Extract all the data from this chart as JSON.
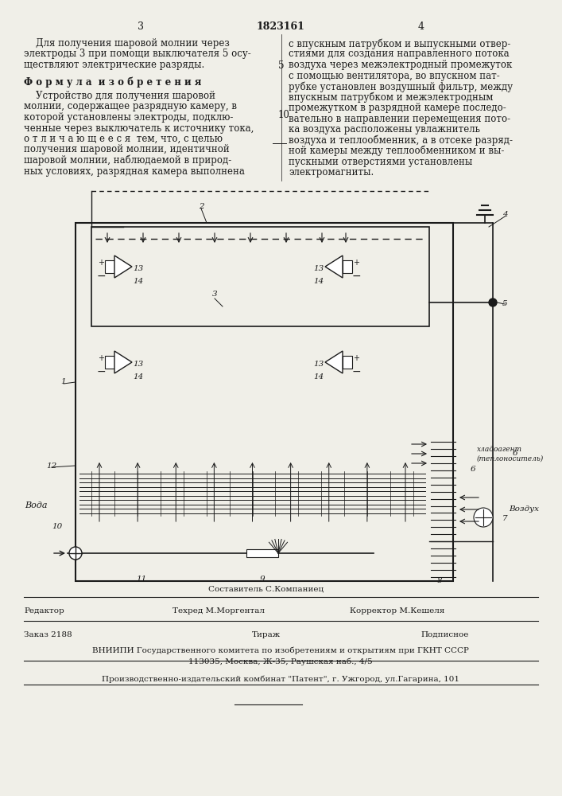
{
  "page_number_left": "3",
  "patent_number": "1823161",
  "page_number_right": "4",
  "text_left_col": [
    "    Для получения шаровой молнии через",
    "электроды 3 при помощи выключателя 5 осу-",
    "ществляют электрические разряды."
  ],
  "formula_header": "Ф о р м у л а  и з о б р е т е н и я",
  "text_left_col2": [
    "    Устройство для получения шаровой",
    "молнии, содержащее разрядную камеру, в",
    "которой установлены электроды, подклю-",
    "ченные через выключатель к источнику тока,",
    "о т л и ч а ю щ е е с я  тем, что, с целью",
    "получения шаровой молнии, идентичной",
    "шаровой молнии, наблюдаемой в природ-",
    "ных условиях, разрядная камера выполнена"
  ],
  "line_numbers": [
    "5",
    "10"
  ],
  "text_right_col": [
    "с впускным патрубком и выпускными отвер-",
    "стиями для создания направленного потока",
    "воздуха через межэлектродный промежуток",
    "с помощью вентилятора, во впускном пат-",
    "рубке установлен воздушный фильтр, между",
    "впускным патрубком и межэлектродным",
    "промежутком в разрядной камере последо-",
    "вательно в направлении перемещения пото-",
    "ка воздуха расположены увлажнитель",
    "воздуха и теплообменник, а в отсеке разряд-",
    "ной камеры между теплообменником и вы-",
    "пускными отверстиями установлены",
    "электромагниты."
  ],
  "footer_line1_left": "Редактор",
  "footer_line1_center1": "Составитель С.Компаниец",
  "footer_line1_center2": "Техред М.Моргентал",
  "footer_line1_right": "Корректор М.Кешеля",
  "footer_line2_left": "Заказ 2188",
  "footer_line2_center": "Тираж",
  "footer_line2_right": "Подписное",
  "footer_line3": "ВНИИПИ Государственного комитета по изобретениям и открытиям при ГКНТ СССР",
  "footer_line4": "113035, Москва, Ж-35, Раушская наб., 4/5",
  "footer_line5": "Производственно-издательский комбинат \"Патент\", г. Ужгород, ул.Гагарина, 101",
  "bg_color": "#f5f5f0"
}
